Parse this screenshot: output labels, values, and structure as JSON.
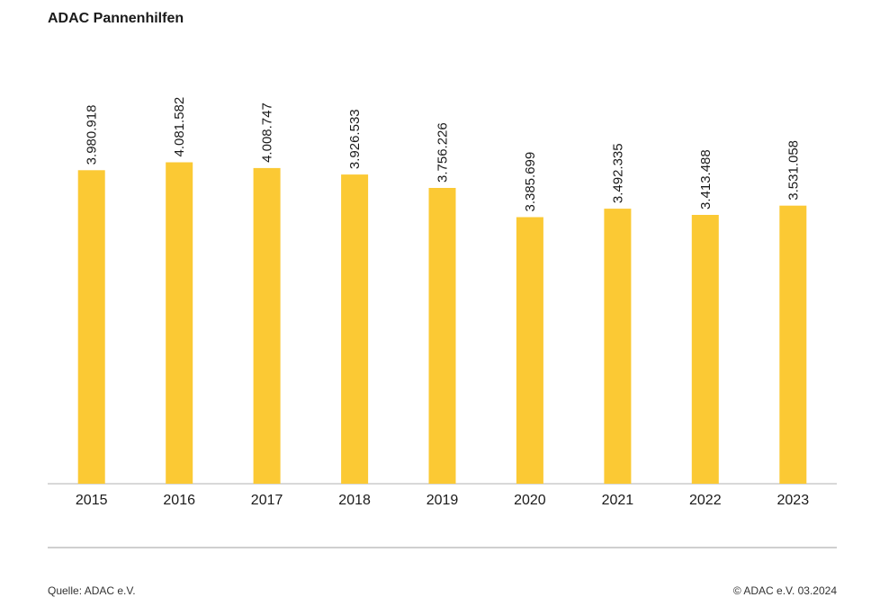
{
  "title": "ADAC Pannenhilfen",
  "colors": {
    "bar": "#FBC934",
    "axis": "#b0b0b0",
    "text": "#1a1a1a"
  },
  "chart_data": {
    "type": "bar",
    "title": "ADAC Pannenhilfen",
    "categories": [
      "2015",
      "2016",
      "2017",
      "2018",
      "2019",
      "2020",
      "2021",
      "2022",
      "2023"
    ],
    "values": [
      3980918,
      4081582,
      4008747,
      3926533,
      3756226,
      3385699,
      3492335,
      3413488,
      3531058
    ],
    "value_labels": [
      "3.980.918",
      "4.081.582",
      "4.008.747",
      "3.926.533",
      "3.756.226",
      "3.385.699",
      "3.492.335",
      "3.413.488",
      "3.531.058"
    ],
    "xlabel": "",
    "ylabel": "",
    "ylim": [
      0,
      5800000
    ],
    "grid": false,
    "legend": "none"
  },
  "footer": {
    "source": "Quelle: ADAC e.V.",
    "copyright": "© ADAC e.V. 03.2024"
  }
}
